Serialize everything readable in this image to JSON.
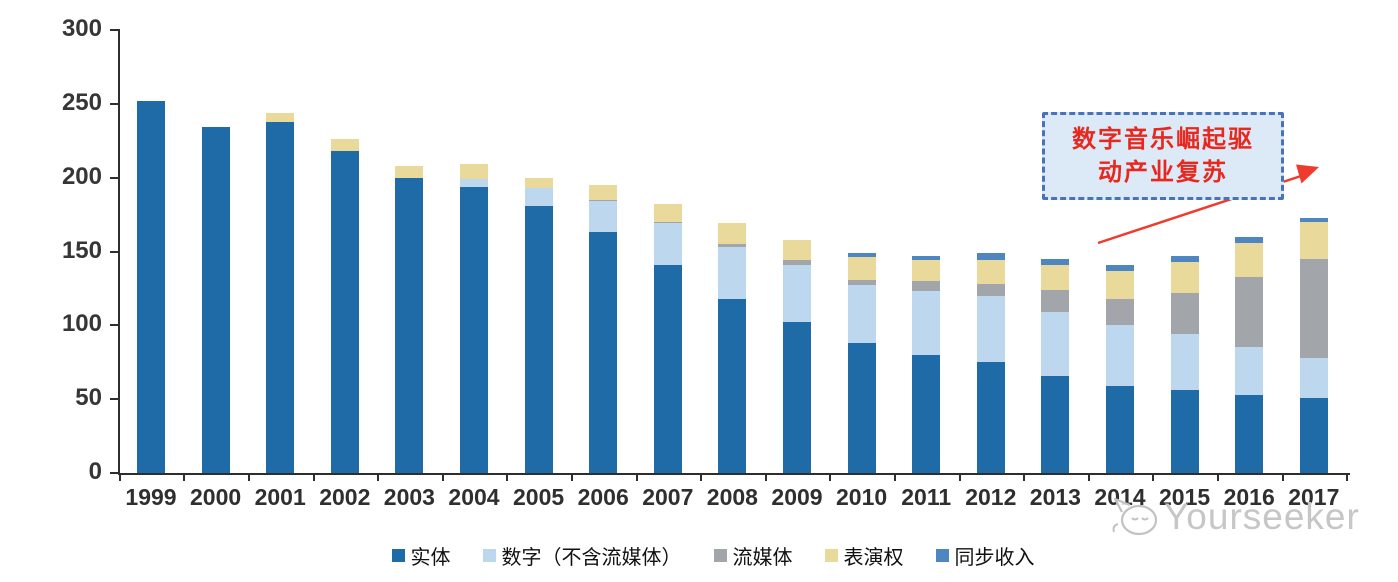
{
  "chart_data": {
    "type": "bar",
    "stacked": true,
    "title": "",
    "xlabel": "",
    "ylabel": "",
    "categories": [
      "1999",
      "2000",
      "2001",
      "2002",
      "2003",
      "2004",
      "2005",
      "2006",
      "2007",
      "2008",
      "2009",
      "2010",
      "2011",
      "2012",
      "2013",
      "2014",
      "2015",
      "2016",
      "2017"
    ],
    "series": [
      {
        "name": "实体",
        "color": "#1f6ba8",
        "values": [
          252,
          234,
          238,
          218,
          200,
          194,
          181,
          163,
          141,
          118,
          102,
          88,
          80,
          75,
          66,
          59,
          56,
          53,
          51
        ]
      },
      {
        "name": "数字（不含流媒体）",
        "color": "#bdd7ee",
        "values": [
          0,
          0,
          0,
          0,
          0,
          5,
          12,
          21,
          28,
          35,
          39,
          39,
          43,
          45,
          43,
          41,
          38,
          32,
          27
        ]
      },
      {
        "name": "流媒体",
        "color": "#a2a5a9",
        "values": [
          0,
          0,
          0,
          0,
          0,
          0,
          0,
          1,
          1,
          2,
          3,
          4,
          7,
          8,
          15,
          18,
          28,
          48,
          67
        ]
      },
      {
        "name": "表演权",
        "color": "#e9da9c",
        "values": [
          0,
          0,
          6,
          8,
          8,
          10,
          7,
          10,
          12,
          14,
          14,
          15,
          14,
          16,
          17,
          19,
          21,
          23,
          25
        ]
      },
      {
        "name": "同步收入",
        "color": "#4d86c0",
        "values": [
          0,
          0,
          0,
          0,
          0,
          0,
          0,
          0,
          0,
          0,
          0,
          3,
          3,
          5,
          4,
          4,
          4,
          4,
          3
        ]
      }
    ],
    "ylim": [
      0,
      300
    ],
    "yticks": [
      0,
      50,
      100,
      150,
      200,
      250,
      300
    ],
    "grid": false,
    "legend_position": "bottom"
  },
  "annotation": {
    "line1": "数字音乐崛起驱",
    "line2": "动产业复苏",
    "text_color": "#e8281e",
    "fill_color": "#dce9f7",
    "border_color": "#4a72b8",
    "arrow_color": "#ef3b2d"
  },
  "watermark": {
    "text": "Yourseeker",
    "color": "#c6c6c6",
    "icon": "yourseeker-mascot-icon"
  }
}
